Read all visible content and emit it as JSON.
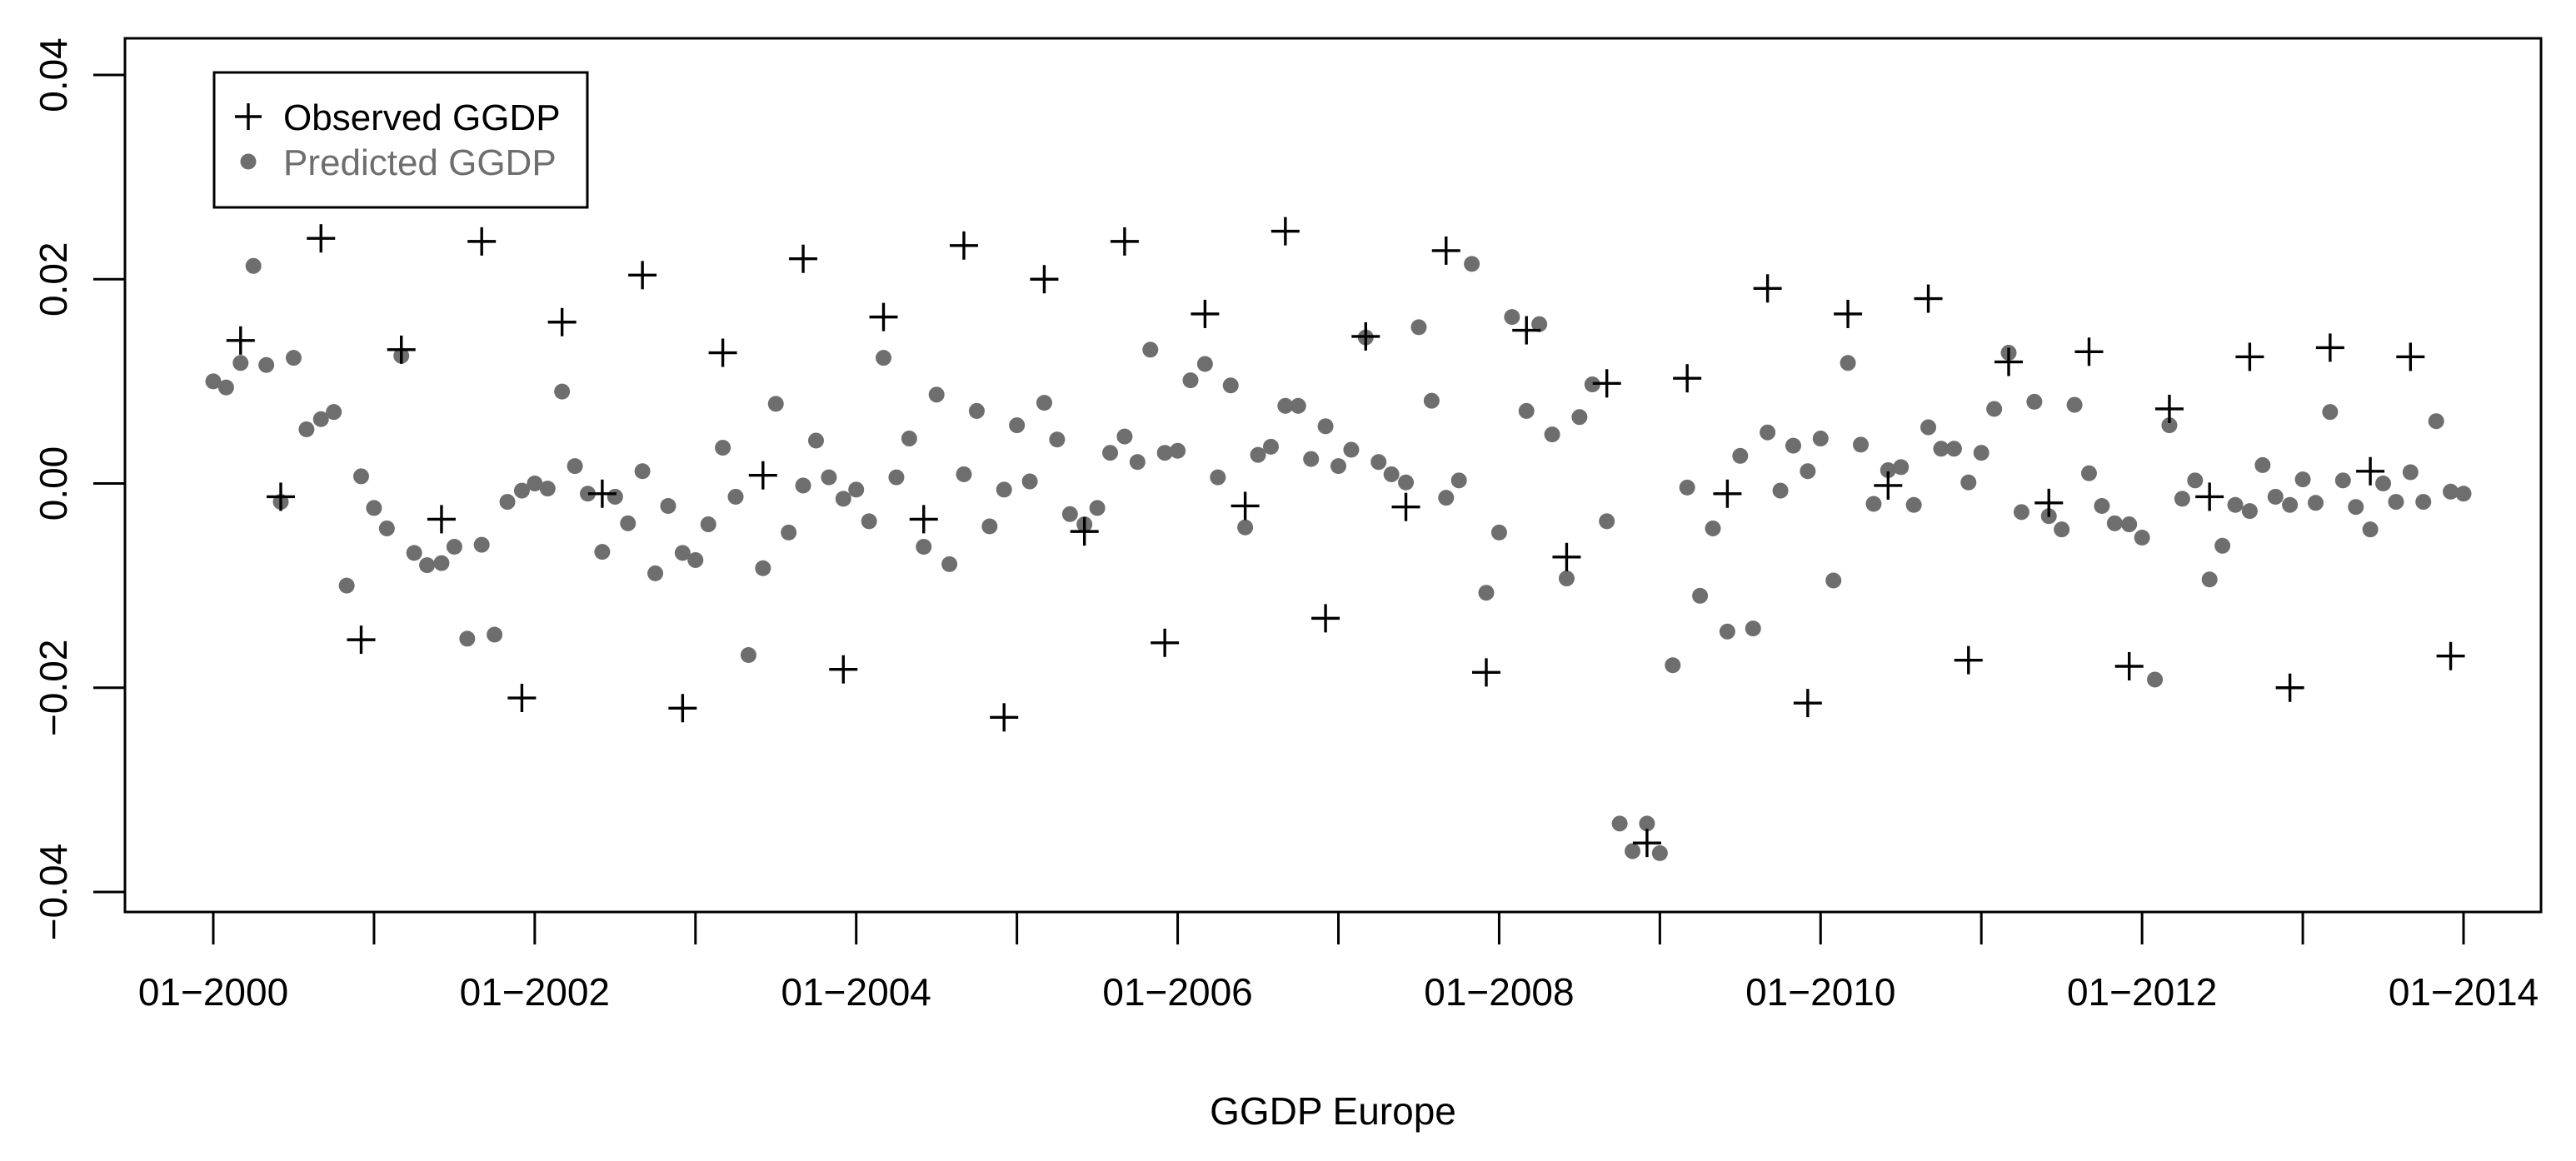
{
  "chart_data": {
    "type": "scatter",
    "title": "",
    "xlabel": "GGDP Europe",
    "ylabel": "",
    "xlim": [
      2000.0,
      2014.0
    ],
    "ylim": [
      -0.04,
      0.04
    ],
    "xticks": [
      2000,
      2001,
      2002,
      2003,
      2004,
      2005,
      2006,
      2007,
      2008,
      2009,
      2010,
      2011,
      2012,
      2013,
      2014
    ],
    "xtick_labels": [
      {
        "x": 2000,
        "label": "01−2000"
      },
      {
        "x": 2002,
        "label": "01−2002"
      },
      {
        "x": 2004,
        "label": "01−2004"
      },
      {
        "x": 2006,
        "label": "01−2006"
      },
      {
        "x": 2008,
        "label": "01−2008"
      },
      {
        "x": 2010,
        "label": "01−2010"
      },
      {
        "x": 2012,
        "label": "01−2012"
      },
      {
        "x": 2014,
        "label": "01−2014"
      }
    ],
    "yticks": [
      {
        "y": -0.04,
        "label": "−0.04"
      },
      {
        "y": -0.02,
        "label": "−0.02"
      },
      {
        "y": 0.0,
        "label": "0.00"
      },
      {
        "y": 0.02,
        "label": "0.02"
      },
      {
        "y": 0.04,
        "label": "0.04"
      }
    ],
    "grid": false,
    "legend": "top-left",
    "series": [
      {
        "name": "Observed GGDP",
        "marker": "plus",
        "color": "#000000",
        "x": [
          2000.17,
          2000.42,
          2000.67,
          2000.92,
          2001.17,
          2001.42,
          2001.67,
          2001.92,
          2002.17,
          2002.42,
          2002.67,
          2002.92,
          2003.17,
          2003.42,
          2003.67,
          2003.92,
          2004.17,
          2004.42,
          2004.67,
          2004.92,
          2005.17,
          2005.42,
          2005.67,
          2005.92,
          2006.17,
          2006.42,
          2006.67,
          2006.92,
          2007.17,
          2007.42,
          2007.67,
          2007.92,
          2008.17,
          2008.42,
          2008.67,
          2008.92,
          2009.17,
          2009.42,
          2009.67,
          2009.92,
          2010.17,
          2010.42,
          2010.67,
          2010.92,
          2011.17,
          2011.42,
          2011.67,
          2011.92,
          2012.17,
          2012.42,
          2012.67,
          2012.92,
          2013.17,
          2013.42,
          2013.67,
          2013.92
        ],
        "y": [
          0.014,
          -0.0013,
          0.024,
          -0.0153,
          0.0131,
          -0.0035,
          0.0237,
          -0.021,
          0.0158,
          -0.001,
          0.0204,
          -0.022,
          0.0128,
          0.0008,
          0.022,
          -0.0182,
          0.0163,
          -0.0035,
          0.0233,
          -0.0229,
          0.02,
          -0.0047,
          0.0237,
          -0.0156,
          0.0166,
          -0.0022,
          0.0247,
          -0.0132,
          0.0144,
          -0.0023,
          0.0228,
          -0.0185,
          0.015,
          -0.0072,
          0.0098,
          -0.0352,
          0.0103,
          -0.001,
          0.0191,
          -0.0215,
          0.0166,
          -0.0002,
          0.0181,
          -0.0173,
          0.0119,
          -0.0019,
          0.0129,
          -0.0179,
          0.0073,
          -0.0013,
          0.0124,
          -0.02,
          0.0133,
          0.0012,
          0.0124,
          -0.0169
        ]
      },
      {
        "name": "Predicted GGDP",
        "marker": "dot",
        "color": "#6e6e6e",
        "x": [
          2000.0,
          2000.08,
          2000.17,
          2000.25,
          2000.33,
          2000.42,
          2000.5,
          2000.58,
          2000.67,
          2000.75,
          2000.83,
          2000.92,
          2001.0,
          2001.08,
          2001.17,
          2001.25,
          2001.33,
          2001.42,
          2001.5,
          2001.58,
          2001.67,
          2001.75,
          2001.83,
          2001.92,
          2002.0,
          2002.08,
          2002.17,
          2002.25,
          2002.33,
          2002.42,
          2002.5,
          2002.58,
          2002.67,
          2002.75,
          2002.83,
          2002.92,
          2003.0,
          2003.08,
          2003.17,
          2003.25,
          2003.33,
          2003.42,
          2003.5,
          2003.58,
          2003.67,
          2003.75,
          2003.83,
          2003.92,
          2004.0,
          2004.08,
          2004.17,
          2004.25,
          2004.33,
          2004.42,
          2004.5,
          2004.58,
          2004.67,
          2004.75,
          2004.83,
          2004.92,
          2005.0,
          2005.08,
          2005.17,
          2005.25,
          2005.33,
          2005.42,
          2005.5,
          2005.58,
          2005.67,
          2005.75,
          2005.83,
          2005.92,
          2006.0,
          2006.08,
          2006.17,
          2006.25,
          2006.33,
          2006.42,
          2006.5,
          2006.58,
          2006.67,
          2006.75,
          2006.83,
          2006.92,
          2007.0,
          2007.08,
          2007.17,
          2007.25,
          2007.33,
          2007.42,
          2007.5,
          2007.58,
          2007.67,
          2007.75,
          2007.83,
          2007.92,
          2008.0,
          2008.08,
          2008.17,
          2008.25,
          2008.33,
          2008.42,
          2008.5,
          2008.58,
          2008.67,
          2008.75,
          2008.83,
          2008.92,
          2009.0,
          2009.08,
          2009.17,
          2009.25,
          2009.33,
          2009.42,
          2009.5,
          2009.58,
          2009.67,
          2009.75,
          2009.83,
          2009.92,
          2010.0,
          2010.08,
          2010.17,
          2010.25,
          2010.33,
          2010.42,
          2010.5,
          2010.58,
          2010.67,
          2010.75,
          2010.83,
          2010.92,
          2011.0,
          2011.08,
          2011.17,
          2011.25,
          2011.33,
          2011.42,
          2011.5,
          2011.58,
          2011.67,
          2011.75,
          2011.83,
          2011.92,
          2012.0,
          2012.08,
          2012.17,
          2012.25,
          2012.33,
          2012.42,
          2012.5,
          2012.58,
          2012.67,
          2012.75,
          2012.83,
          2012.92,
          2013.0,
          2013.08,
          2013.17,
          2013.25,
          2013.33,
          2013.42,
          2013.5,
          2013.58,
          2013.67,
          2013.75,
          2013.83,
          2013.92,
          2014.0
        ],
        "y": [
          0.01,
          0.0094,
          0.0118,
          0.0213,
          0.0116,
          -0.0018,
          0.0123,
          0.0053,
          0.0063,
          0.007,
          -0.01,
          0.0007,
          -0.0024,
          -0.0044,
          0.0125,
          -0.0068,
          -0.008,
          -0.0078,
          -0.0062,
          -0.0152,
          -0.006,
          -0.0148,
          -0.0018,
          -0.0007,
          0.0,
          -0.0005,
          0.009,
          0.0017,
          -0.001,
          -0.0067,
          -0.0013,
          -0.0039,
          0.0012,
          -0.0088,
          -0.0022,
          -0.0068,
          -0.0075,
          -0.004,
          0.0035,
          -0.0013,
          -0.0168,
          -0.0083,
          0.0078,
          -0.0048,
          -0.0002,
          0.0042,
          0.0006,
          -0.0015,
          -0.0006,
          -0.0037,
          0.0123,
          0.0006,
          0.0044,
          -0.0062,
          0.0087,
          -0.0079,
          0.0009,
          0.0071,
          -0.0042,
          -0.0006,
          0.0057,
          0.0002,
          0.0079,
          0.0043,
          -0.003,
          -0.004,
          -0.0024,
          0.003,
          0.0046,
          0.0021,
          0.0131,
          0.003,
          0.0032,
          0.0101,
          0.0117,
          0.0006,
          0.0096,
          -0.0043,
          0.0028,
          0.0036,
          0.0076,
          0.0076,
          0.0024,
          0.0056,
          0.0017,
          0.0033,
          0.0143,
          0.0021,
          0.0009,
          0.0001,
          0.0153,
          0.0081,
          -0.0014,
          0.0003,
          0.0215,
          -0.0107,
          -0.0048,
          0.0163,
          0.0071,
          0.0156,
          0.0048,
          -0.0093,
          0.0065,
          0.0097,
          -0.0037,
          -0.0333,
          -0.036,
          -0.0333,
          -0.0362,
          -0.0178,
          -0.0004,
          -0.011,
          -0.0044,
          -0.0145,
          0.0027,
          -0.0142,
          0.005,
          -0.0007,
          0.0037,
          0.0012,
          0.0044,
          -0.0095,
          0.0118,
          0.0038,
          -0.002,
          0.0013,
          0.0016,
          -0.0021,
          0.0055,
          0.0034,
          0.0034,
          0.0001,
          0.003,
          0.0073,
          0.0128,
          -0.0028,
          0.008,
          -0.0032,
          -0.0045,
          0.0077,
          0.001,
          -0.0022,
          -0.0039,
          -0.004,
          -0.0053,
          -0.0192,
          0.0057,
          -0.0015,
          0.0003,
          -0.0094,
          -0.0061,
          -0.0021,
          -0.0027,
          0.0018,
          -0.0013,
          -0.0021,
          0.0004,
          -0.0019,
          0.007,
          0.0003,
          -0.0023,
          -0.0045,
          0.0,
          -0.0018,
          0.0011,
          -0.0018,
          0.0061,
          -0.0008,
          -0.001
        ]
      }
    ]
  }
}
